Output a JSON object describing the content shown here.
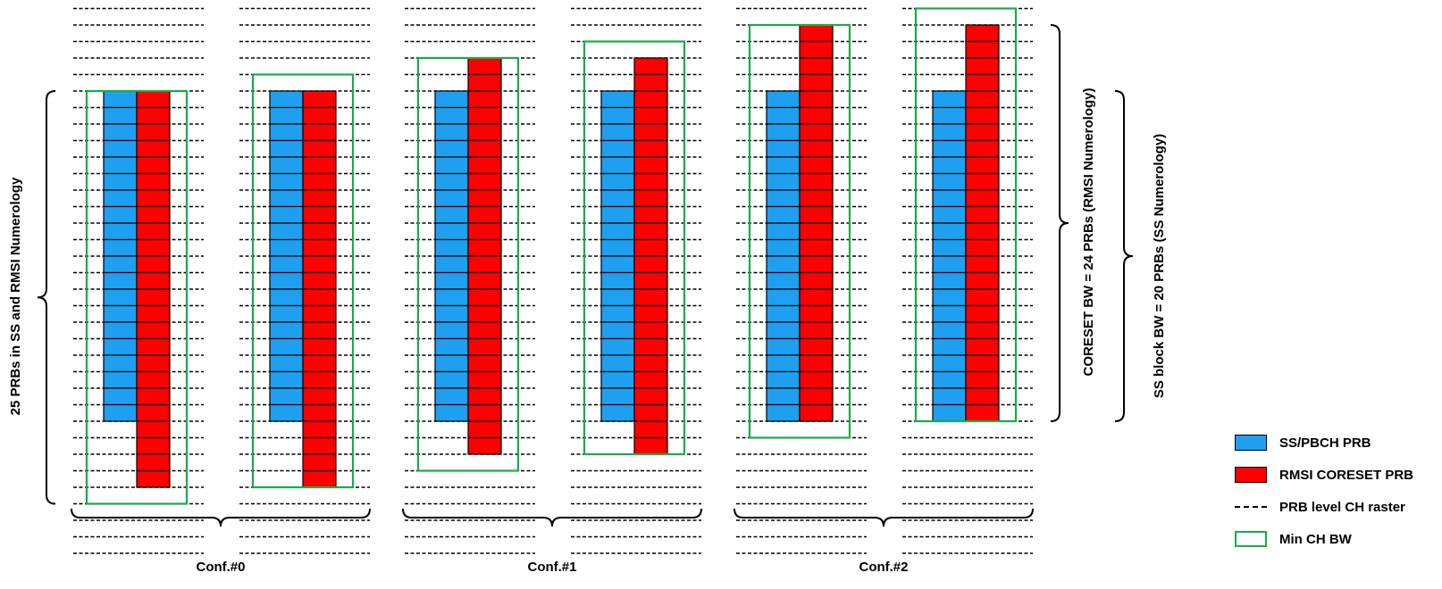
{
  "diagram": {
    "configurations": [
      {
        "label": "Conf.#0",
        "columns": [
          {
            "prb": {
              "top": 0,
              "bottom": 20
            },
            "coreset": {
              "top": 0,
              "bottom": 24
            },
            "min_ch_bw": {
              "top": 0,
              "bottom": 25
            }
          },
          {
            "prb": {
              "top": 0,
              "bottom": 20
            },
            "coreset": {
              "top": 0,
              "bottom": 24
            },
            "min_ch_bw": {
              "top": -1,
              "bottom": 24
            }
          }
        ]
      },
      {
        "label": "Conf.#1",
        "columns": [
          {
            "prb": {
              "top": 0,
              "bottom": 20
            },
            "coreset": {
              "top": -2,
              "bottom": 22
            },
            "min_ch_bw": {
              "top": -2,
              "bottom": 23
            }
          },
          {
            "prb": {
              "top": 0,
              "bottom": 20
            },
            "coreset": {
              "top": -2,
              "bottom": 22
            },
            "min_ch_bw": {
              "top": -3,
              "bottom": 22
            }
          }
        ]
      },
      {
        "label": "Conf.#2",
        "columns": [
          {
            "prb": {
              "top": 0,
              "bottom": 20
            },
            "coreset": {
              "top": -4,
              "bottom": 20
            },
            "min_ch_bw": {
              "top": -4,
              "bottom": 21
            }
          },
          {
            "prb": {
              "top": 0,
              "bottom": 20
            },
            "coreset": {
              "top": -4,
              "bottom": 20
            },
            "min_ch_bw": {
              "top": -5,
              "bottom": 20
            }
          }
        ]
      }
    ],
    "raster_range": [
      -5,
      28
    ],
    "left_brace_label": "25 PRBs in SS and RMSI Numerology",
    "right_brace_coreset_label": "CORESET BW = 24 PRBs (RMSI Numerology)",
    "right_brace_ss_label": "SS block BW = 20 PRBs (SS Numerology)"
  },
  "legend": {
    "items": [
      {
        "label": "SS/PBCH PRB",
        "kind": "ss"
      },
      {
        "label": "RMSI CORESET PRB",
        "kind": "coreset"
      },
      {
        "label": "PRB level CH raster",
        "kind": "raster"
      },
      {
        "label": "Min CH BW",
        "kind": "minbw"
      }
    ]
  },
  "colors": {
    "ss_pbch": "#1e9fef",
    "coreset": "#ff0000",
    "min_ch_bw": "#1aab4b",
    "raster": "#000000"
  }
}
